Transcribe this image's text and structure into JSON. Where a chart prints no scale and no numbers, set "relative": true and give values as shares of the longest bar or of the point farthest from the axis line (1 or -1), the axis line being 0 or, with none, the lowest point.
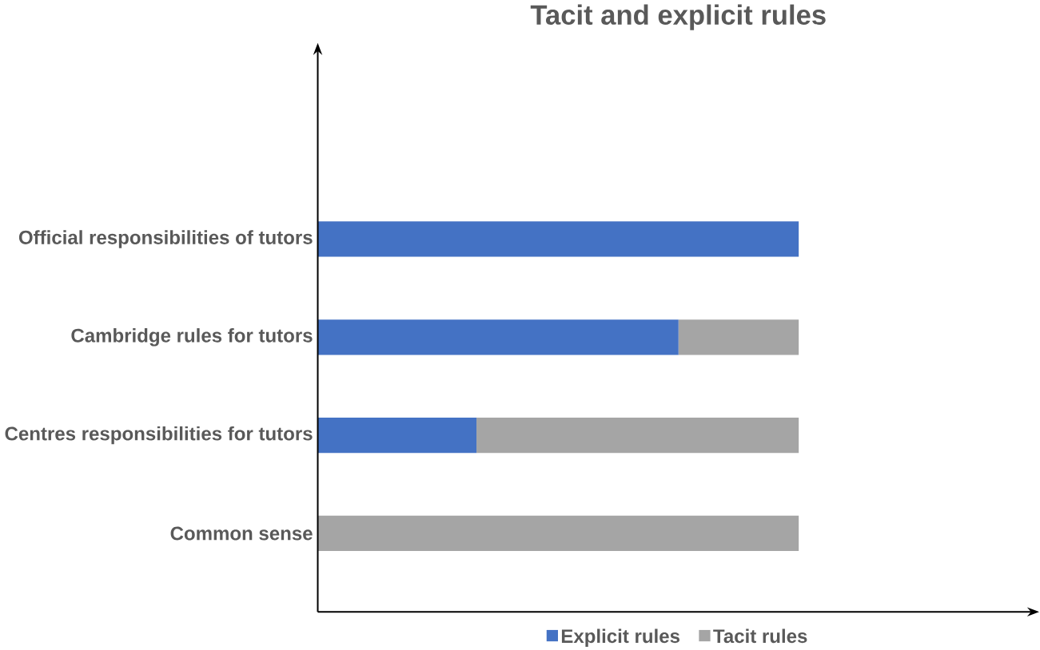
{
  "chart_data": {
    "type": "bar",
    "title": "Tacit and explicit rules",
    "orientation": "horizontal",
    "stacked": true,
    "relative": true,
    "legend": "bottom",
    "categories": [
      "Official responsibilities of tutors",
      "Cambridge rules for tutors",
      "Centres responsibilities for tutors",
      "Common sense"
    ],
    "series": [
      {
        "name": "Explicit rules",
        "color": "#4472c4",
        "values": [
          1.0,
          0.75,
          0.33,
          null
        ]
      },
      {
        "name": "Tacit rules",
        "color": "#a5a5a5",
        "values": [
          null,
          0.25,
          0.67,
          1.0
        ]
      }
    ]
  }
}
